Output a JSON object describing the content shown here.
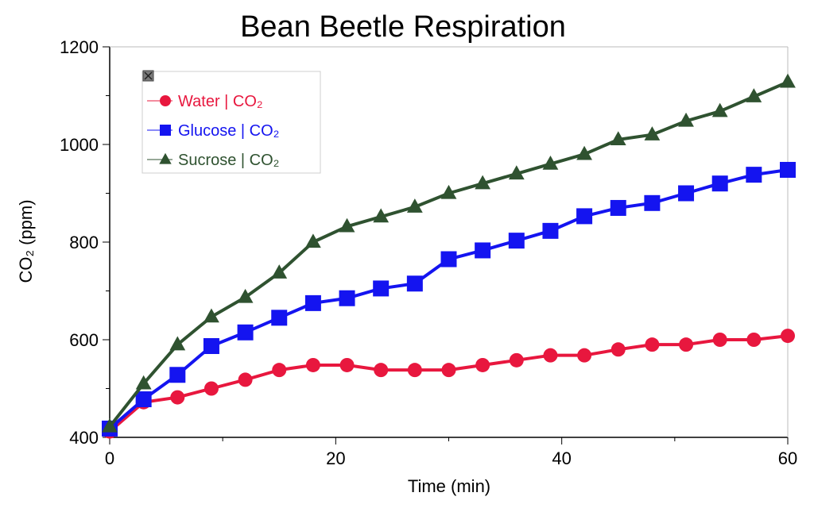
{
  "chart_data": {
    "type": "line",
    "title": "Bean Beetle Respiration",
    "xlabel": "Time (min)",
    "ylabel": "CO₂ (ppm)",
    "xlim": [
      0,
      60
    ],
    "ylim": [
      400,
      1200
    ],
    "x_ticks": [
      0,
      20,
      40,
      60
    ],
    "y_ticks": [
      400,
      600,
      800,
      1000,
      1200
    ],
    "grid": false,
    "legend_position": "top-left",
    "x": [
      0,
      3,
      6,
      9,
      12,
      15,
      18,
      21,
      24,
      27,
      30,
      33,
      36,
      39,
      42,
      45,
      48,
      51,
      54,
      57,
      60
    ],
    "series": [
      {
        "name": "Water | CO₂",
        "color": "#e8173e",
        "marker": "circle",
        "values": [
          412,
          472,
          482,
          500,
          518,
          538,
          548,
          548,
          538,
          538,
          538,
          548,
          558,
          568,
          568,
          580,
          590,
          590,
          600,
          600,
          608
        ]
      },
      {
        "name": "Glucose  | CO₂",
        "color": "#1414f0",
        "marker": "square",
        "values": [
          418,
          478,
          528,
          587,
          615,
          645,
          675,
          685,
          705,
          715,
          765,
          783,
          803,
          823,
          853,
          870,
          880,
          900,
          920,
          938,
          948
        ]
      },
      {
        "name": "Sucrose  | CO₂",
        "color": "#2f5230",
        "marker": "triangle",
        "values": [
          422,
          510,
          590,
          647,
          687,
          737,
          800,
          832,
          852,
          872,
          900,
          920,
          940,
          960,
          980,
          1010,
          1020,
          1048,
          1068,
          1098,
          1128
        ]
      }
    ]
  }
}
